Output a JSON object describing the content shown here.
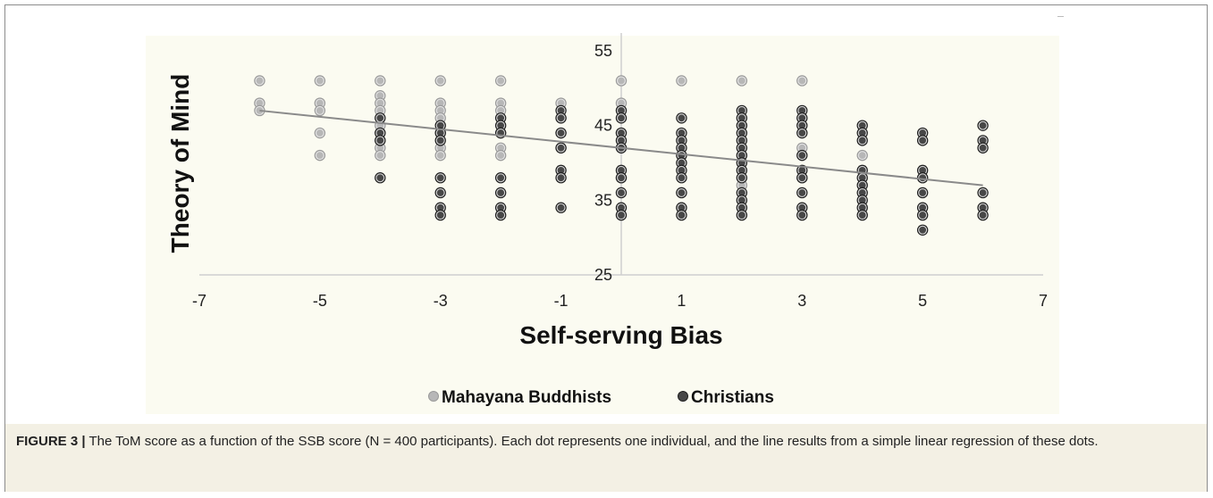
{
  "caption": {
    "figure_label": "FIGURE 3 |",
    "text": " The ToM score as a function of the SSB score (N = 400 participants). Each dot represents one individual, and the line results from a simple linear regression of these dots."
  },
  "chart_data": {
    "type": "scatter",
    "title": "",
    "xlabel": "Self-serving Bias",
    "ylabel": "Theory of Mind",
    "xlim": [
      -7,
      7
    ],
    "ylim": [
      25,
      55
    ],
    "xticks": [
      "-7",
      "-5",
      "-3",
      "-1",
      "1",
      "3",
      "5",
      "7"
    ],
    "yticks": [
      "25",
      "35",
      "45",
      "55"
    ],
    "grid": false,
    "legend_position": "bottom",
    "colors": {
      "buddhists": "#b7b7b7",
      "christians": "#474747",
      "trendline": "#8a8a8a",
      "plot_bg": "#fbfbf1"
    },
    "series": [
      {
        "name": "Mahayana Buddhists",
        "points": [
          [
            -6,
            51
          ],
          [
            -6,
            48
          ],
          [
            -6,
            47
          ],
          [
            -5,
            51
          ],
          [
            -5,
            48
          ],
          [
            -5,
            47
          ],
          [
            -5,
            44
          ],
          [
            -5,
            41
          ],
          [
            -4,
            51
          ],
          [
            -4,
            49
          ],
          [
            -4,
            48
          ],
          [
            -4,
            47
          ],
          [
            -4,
            45
          ],
          [
            -4,
            44
          ],
          [
            -4,
            43
          ],
          [
            -4,
            42
          ],
          [
            -4,
            41
          ],
          [
            -3,
            51
          ],
          [
            -3,
            48
          ],
          [
            -3,
            47
          ],
          [
            -3,
            46
          ],
          [
            -3,
            44
          ],
          [
            -3,
            42
          ],
          [
            -3,
            41
          ],
          [
            -2,
            51
          ],
          [
            -2,
            48
          ],
          [
            -2,
            47
          ],
          [
            -2,
            44
          ],
          [
            -2,
            42
          ],
          [
            -2,
            41
          ],
          [
            -1,
            48
          ],
          [
            -1,
            46
          ],
          [
            -1,
            44
          ],
          [
            -1,
            42
          ],
          [
            0,
            51
          ],
          [
            0,
            48
          ],
          [
            0,
            47
          ],
          [
            0,
            44
          ],
          [
            0,
            42
          ],
          [
            0,
            38
          ],
          [
            1,
            51
          ],
          [
            1,
            36
          ],
          [
            1,
            34
          ],
          [
            2,
            51
          ],
          [
            2,
            37
          ],
          [
            3,
            51
          ],
          [
            3,
            42
          ],
          [
            3,
            38
          ],
          [
            4,
            41
          ],
          [
            5,
            38
          ]
        ]
      },
      {
        "name": "Christians",
        "points": [
          [
            -4,
            46
          ],
          [
            -4,
            44
          ],
          [
            -4,
            43
          ],
          [
            -4,
            38
          ],
          [
            -3,
            45
          ],
          [
            -3,
            44
          ],
          [
            -3,
            43
          ],
          [
            -3,
            38
          ],
          [
            -3,
            36
          ],
          [
            -3,
            34
          ],
          [
            -3,
            33
          ],
          [
            -2,
            46
          ],
          [
            -2,
            45
          ],
          [
            -2,
            44
          ],
          [
            -2,
            38
          ],
          [
            -2,
            36
          ],
          [
            -2,
            34
          ],
          [
            -2,
            33
          ],
          [
            -1,
            47
          ],
          [
            -1,
            46
          ],
          [
            -1,
            44
          ],
          [
            -1,
            42
          ],
          [
            -1,
            39
          ],
          [
            -1,
            38
          ],
          [
            -1,
            34
          ],
          [
            0,
            47
          ],
          [
            0,
            46
          ],
          [
            0,
            44
          ],
          [
            0,
            43
          ],
          [
            0,
            42
          ],
          [
            0,
            39
          ],
          [
            0,
            38
          ],
          [
            0,
            36
          ],
          [
            0,
            34
          ],
          [
            0,
            33
          ],
          [
            1,
            46
          ],
          [
            1,
            44
          ],
          [
            1,
            43
          ],
          [
            1,
            42
          ],
          [
            1,
            41
          ],
          [
            1,
            40
          ],
          [
            1,
            39
          ],
          [
            1,
            38
          ],
          [
            1,
            36
          ],
          [
            1,
            34
          ],
          [
            1,
            33
          ],
          [
            2,
            47
          ],
          [
            2,
            46
          ],
          [
            2,
            45
          ],
          [
            2,
            44
          ],
          [
            2,
            43
          ],
          [
            2,
            42
          ],
          [
            2,
            41
          ],
          [
            2,
            40
          ],
          [
            2,
            39
          ],
          [
            2,
            38
          ],
          [
            2,
            36
          ],
          [
            2,
            35
          ],
          [
            2,
            34
          ],
          [
            2,
            33
          ],
          [
            3,
            47
          ],
          [
            3,
            46
          ],
          [
            3,
            45
          ],
          [
            3,
            44
          ],
          [
            3,
            41
          ],
          [
            3,
            39
          ],
          [
            3,
            38
          ],
          [
            3,
            36
          ],
          [
            3,
            34
          ],
          [
            3,
            33
          ],
          [
            4,
            45
          ],
          [
            4,
            44
          ],
          [
            4,
            43
          ],
          [
            4,
            39
          ],
          [
            4,
            38
          ],
          [
            4,
            37
          ],
          [
            4,
            36
          ],
          [
            4,
            35
          ],
          [
            4,
            34
          ],
          [
            4,
            33
          ],
          [
            5,
            44
          ],
          [
            5,
            43
          ],
          [
            5,
            39
          ],
          [
            5,
            38
          ],
          [
            5,
            36
          ],
          [
            5,
            34
          ],
          [
            5,
            33
          ],
          [
            5,
            31
          ],
          [
            6,
            45
          ],
          [
            6,
            43
          ],
          [
            6,
            42
          ],
          [
            6,
            36
          ],
          [
            6,
            34
          ],
          [
            6,
            33
          ]
        ]
      }
    ],
    "trendline": {
      "x": [
        -6,
        6
      ],
      "y": [
        47,
        37
      ]
    }
  }
}
